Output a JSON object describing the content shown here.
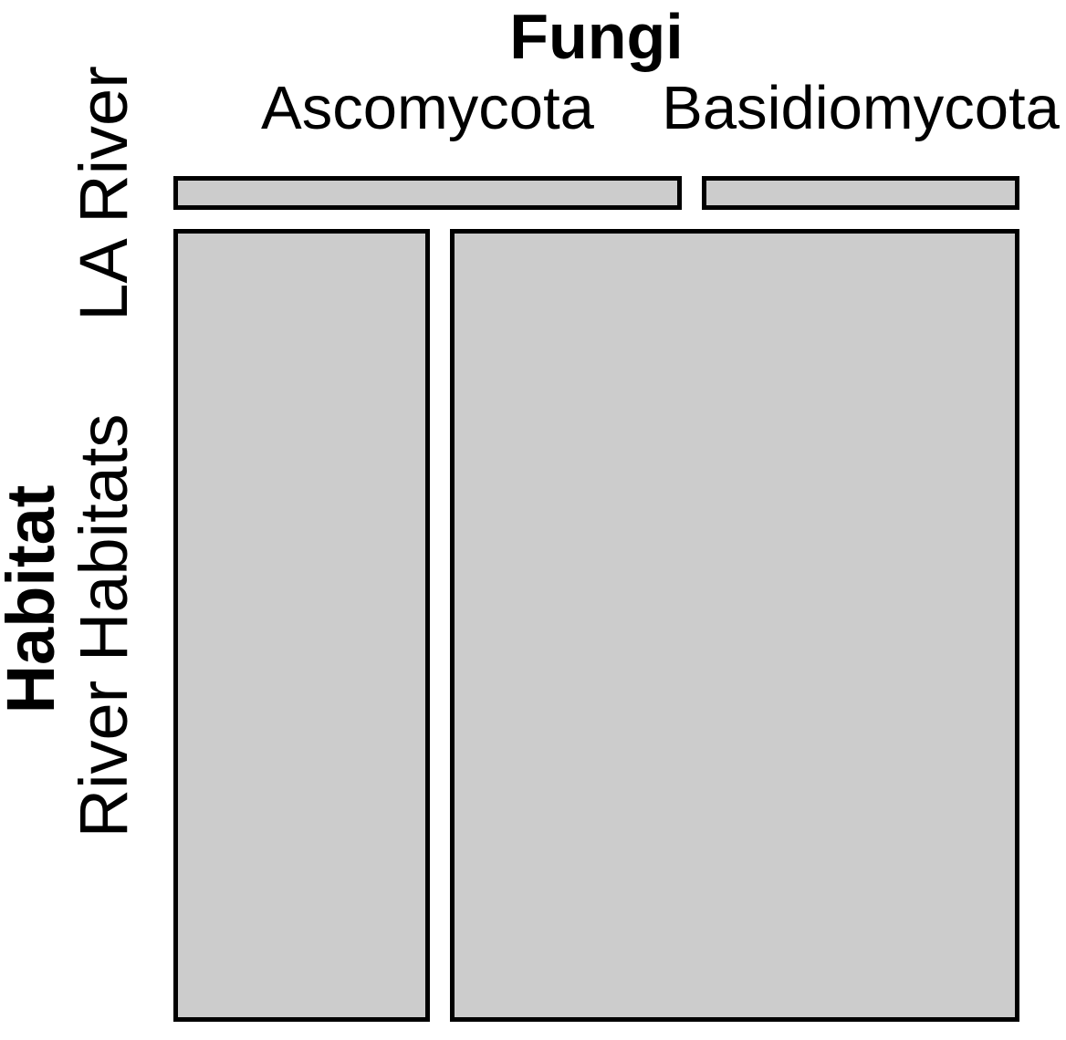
{
  "chart_data": {
    "type": "mosaic",
    "title": "Fungi",
    "x_dimension_label": "Fungi",
    "ylabel": "Habitat",
    "columns": [
      "Ascomycota",
      "Basidiomycota"
    ],
    "rows": [
      "LA River",
      "River Habitats"
    ],
    "row_height_shares": [
      0.041,
      0.959
    ],
    "cell_col_shares": [
      [
        0.615,
        0.385
      ],
      [
        0.311,
        0.689
      ]
    ],
    "legend_position": "none",
    "gridlines": false,
    "colors": {
      "cell_fill": "#cccccc",
      "cell_border": "#000000",
      "text": "#000000",
      "background": "#ffffff"
    }
  }
}
